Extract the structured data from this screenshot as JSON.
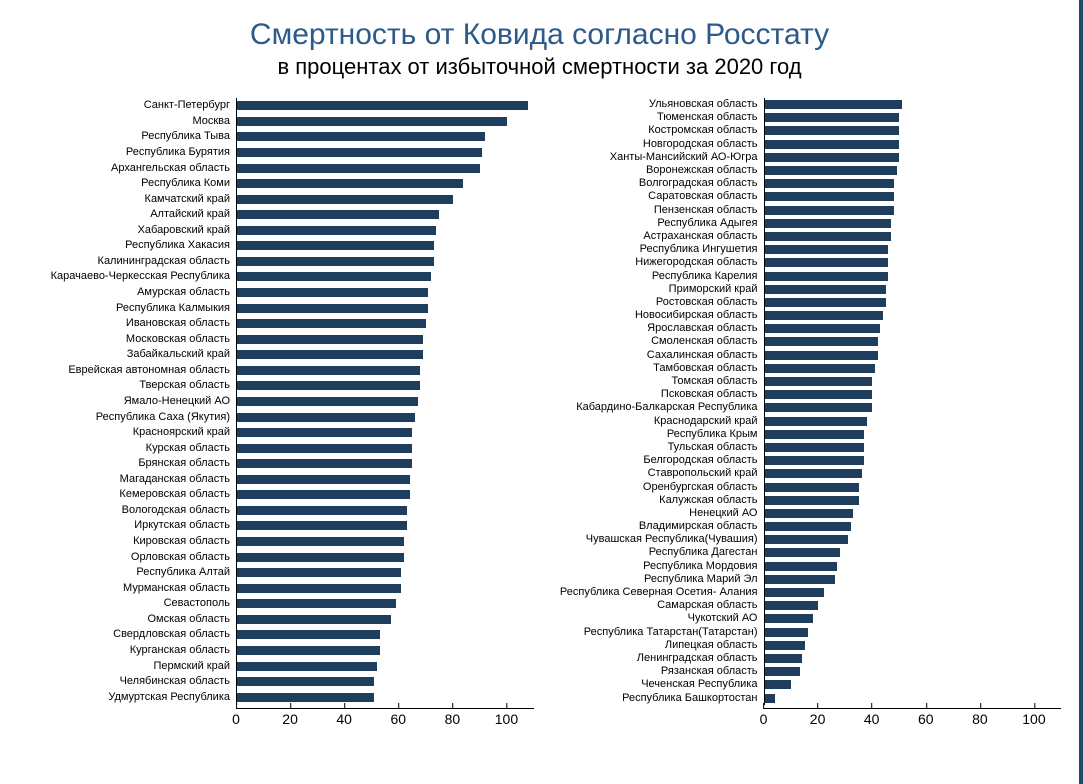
{
  "title": "Смертность от Ковида согласно Росстату",
  "subtitle": "в процентах от избыточной смертности за 2020 год",
  "title_color": "#2c5a8a",
  "title_fontsize": 30,
  "subtitle_fontsize": 22,
  "bar_color": "#1f3d5c",
  "background_color": "#ffffff",
  "axis_color": "#000000",
  "label_fontsize": 11,
  "tick_fontsize": 14,
  "xlim": [
    0,
    110
  ],
  "xtick_step": 20,
  "xticks": [
    0,
    20,
    40,
    60,
    80,
    100
  ],
  "left_chart": {
    "type": "bar",
    "orientation": "horizontal",
    "categories": [
      "Санкт-Петербург",
      "Москва",
      "Республика Тыва",
      "Республика Бурятия",
      "Архангельская область",
      "Республика Коми",
      "Камчатский край",
      "Алтайский край",
      "Хабаровский край",
      "Республика Хакасия",
      "Калининградская область",
      "Карачаево-Черкесская Республика",
      "Амурская область",
      "Республика Калмыкия",
      "Ивановская область",
      "Московская область",
      "Забайкальский край",
      "Еврейская автономная область",
      "Тверская область",
      "Ямало-Ненецкий АО",
      "Республика Саха (Якутия)",
      "Красноярский край",
      "Курская область",
      "Брянская область",
      "Магаданская область",
      "Кемеровская область",
      "Вологодская область",
      "Иркутская область",
      "Кировская область",
      "Орловская область",
      "Республика Алтай",
      "Мурманская область",
      "Севастополь",
      "Омская область",
      "Свердловская область",
      "Курганская область",
      "Пермский край",
      "Челябинская область",
      "Удмуртская Республика"
    ],
    "values": [
      108,
      100,
      92,
      91,
      90,
      84,
      80,
      75,
      74,
      73,
      73,
      72,
      71,
      71,
      70,
      69,
      69,
      68,
      68,
      67,
      66,
      65,
      65,
      65,
      64,
      64,
      63,
      63,
      62,
      62,
      61,
      61,
      59,
      57,
      53,
      53,
      52,
      51,
      51
    ]
  },
  "right_chart": {
    "type": "bar",
    "orientation": "horizontal",
    "categories": [
      "Ульяновская область",
      "Тюменская область",
      "Костромская область",
      "Новгородская область",
      "Ханты-Мансийский АО-Югра",
      "Воронежская область",
      "Волгоградская область",
      "Саратовская область",
      "Пензенская область",
      "Республика Адыгея",
      "Астраханская область",
      "Республика Ингушетия",
      "Нижегородская область",
      "Республика Карелия",
      "Приморский край",
      "Ростовская область",
      "Новосибирская область",
      "Ярославская область",
      "Смоленская область",
      "Сахалинская область",
      "Тамбовская область",
      "Томская область",
      "Псковская область",
      "Кабардино-Балкарская Республика",
      "Краснодарский край",
      "Республика Крым",
      "Тульская область",
      "Белгородская область",
      "Ставропольский край",
      "Оренбургская область",
      "Калужская область",
      "Ненецкий АО",
      "Владимирская область",
      "Чувашская Республика(Чувашия)",
      "Республика Дагестан",
      "Республика Мордовия",
      "Республика Марий Эл",
      "Республика Северная Осетия- Алания",
      "Самарская область",
      "Чукотский АО",
      "Республика Татарстан(Татарстан)",
      "Липецкая область",
      "Ленинградская область",
      "Рязанская область",
      "Чеченская Республика",
      "Республика Башкортостан"
    ],
    "values": [
      51,
      50,
      50,
      50,
      50,
      49,
      48,
      48,
      48,
      47,
      47,
      46,
      46,
      46,
      45,
      45,
      44,
      43,
      42,
      42,
      41,
      40,
      40,
      40,
      38,
      37,
      37,
      37,
      36,
      35,
      35,
      33,
      32,
      31,
      28,
      27,
      26,
      22,
      20,
      18,
      16,
      15,
      14,
      13,
      10,
      4
    ]
  },
  "footer_note": ""
}
